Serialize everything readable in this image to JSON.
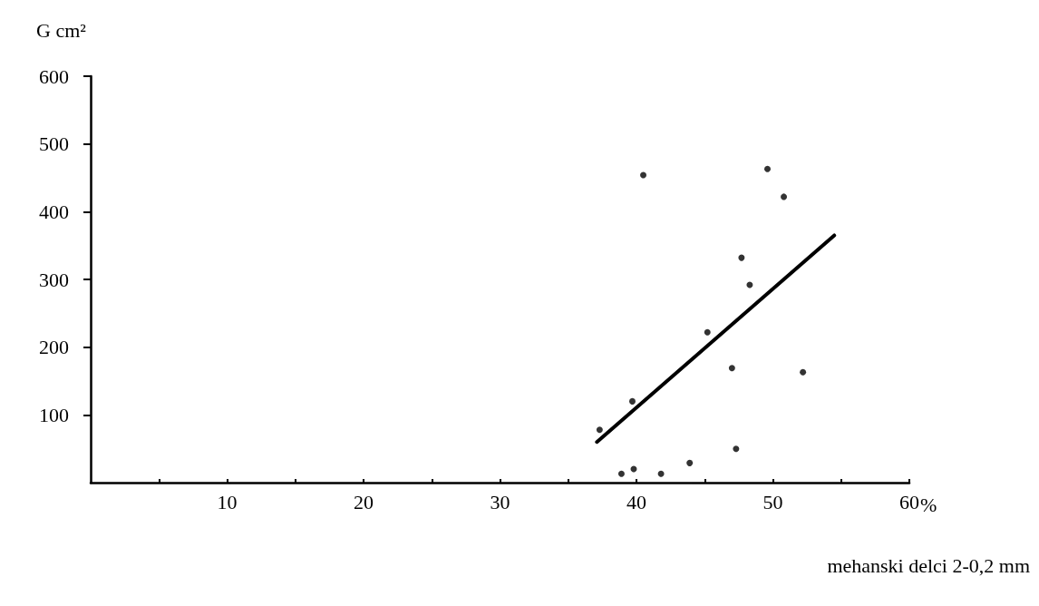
{
  "chart_data": {
    "type": "scatter",
    "ylabel": "G cm²",
    "xlabel": "mehanski delci 2-0,2 mm",
    "annotations": [
      "%"
    ],
    "xlim": [
      0,
      60
    ],
    "ylim": [
      0,
      600
    ],
    "xticks": [
      {
        "value": 5,
        "label": null
      },
      10,
      {
        "value": 15,
        "label": null
      },
      20,
      {
        "value": 25,
        "label": null
      },
      30,
      {
        "value": 35,
        "label": null
      },
      40,
      {
        "value": 45,
        "label": null
      },
      50,
      {
        "value": 55,
        "label": null
      },
      60
    ],
    "yticks": [
      100,
      200,
      300,
      400,
      500,
      600
    ],
    "grid": false,
    "marker": "circle",
    "series": [
      {
        "color": "#000000",
        "x": [
          40.5,
          49.6,
          50.8,
          47.7,
          48.3,
          45.2,
          47.0,
          52.2,
          39.7,
          37.3,
          47.3,
          43.9,
          39.8,
          38.9,
          41.8
        ],
        "values": [
          454,
          463,
          422,
          332,
          292,
          222,
          169,
          163,
          120,
          78,
          50,
          29,
          20,
          13,
          13
        ]
      },
      {
        "type": "line",
        "color": "#000000",
        "marker": "none",
        "line_style": "solid",
        "x": [
          37.1,
          54.5
        ],
        "values": [
          60,
          365
        ]
      }
    ]
  }
}
